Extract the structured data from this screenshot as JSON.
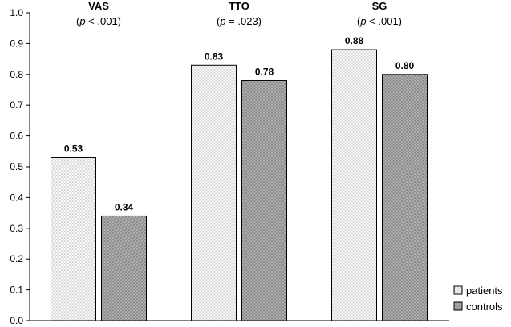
{
  "chart_data": {
    "type": "bar",
    "categories": [
      "VAS",
      "TTO",
      "SG"
    ],
    "category_pvalues": [
      {
        "p": "p",
        "rest": " < .001)"
      },
      {
        "p": "p",
        "rest": " = .023)"
      },
      {
        "p": "p",
        "rest": " < .001)"
      }
    ],
    "series": [
      {
        "name": "patients",
        "values": [
          0.53,
          0.83,
          0.88
        ],
        "value_labels": [
          "0.53",
          "0.83",
          "0.88"
        ],
        "fill": "#f0f0f0",
        "pattern": "light-dotted"
      },
      {
        "name": "controls",
        "values": [
          0.34,
          0.78,
          0.8
        ],
        "value_labels": [
          "0.34",
          "0.78",
          "0.80"
        ],
        "fill": "#a8a8a8",
        "pattern": "dark-dotted"
      }
    ],
    "ylim": [
      0,
      1.0
    ],
    "yticks": [
      "0.0",
      "0.1",
      "0.2",
      "0.3",
      "0.4",
      "0.5",
      "0.6",
      "0.7",
      "0.8",
      "0.9",
      "1.0"
    ],
    "grid": false,
    "legend_position": "bottom-right",
    "title": "",
    "xlabel": "",
    "ylabel": ""
  },
  "legend": {
    "items": [
      "patients",
      "controls"
    ]
  }
}
